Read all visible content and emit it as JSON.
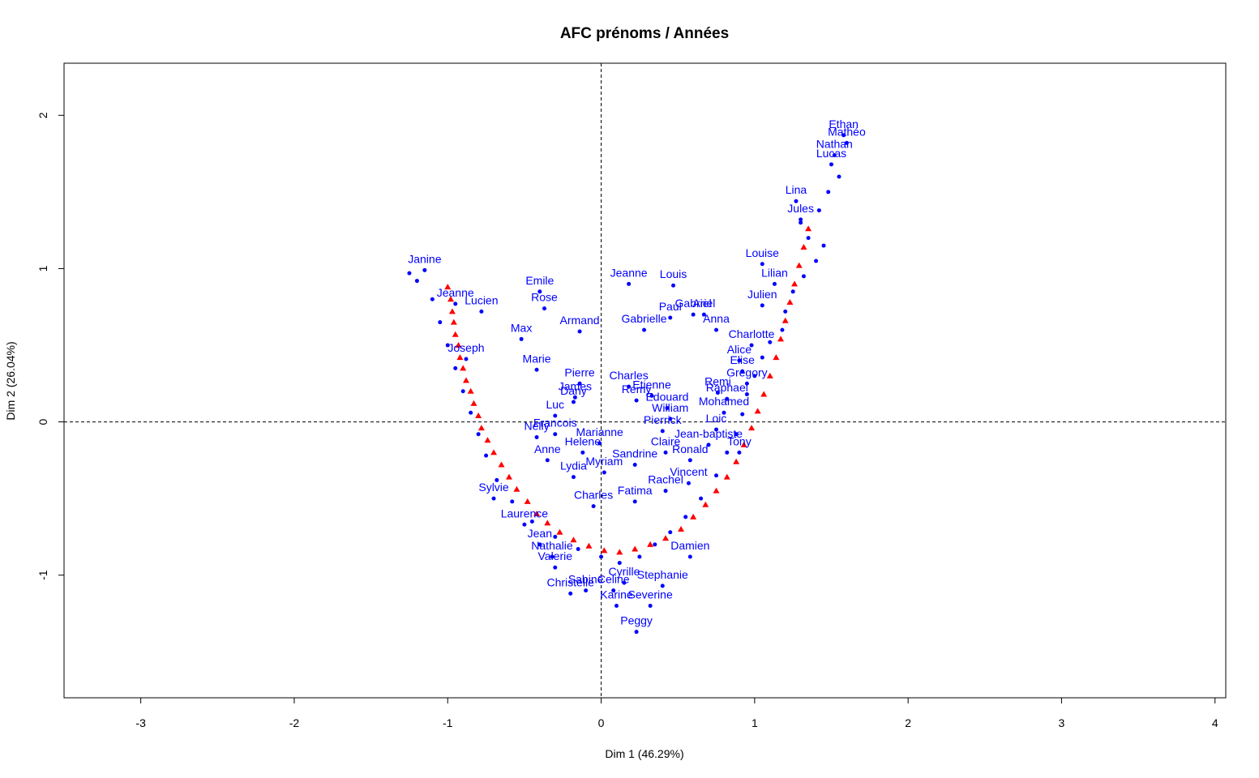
{
  "chart_data": {
    "type": "scatter",
    "title": "AFC prénoms / Années",
    "xlabel": "Dim 1 (46.29%)",
    "ylabel": "Dim 2 (26.04%)",
    "xlim": [
      -3.5,
      4.07
    ],
    "ylim": [
      -1.8,
      2.34
    ],
    "x_ticks": [
      -3,
      -2,
      -1,
      0,
      1,
      2,
      3,
      4
    ],
    "y_ticks": [
      -1,
      0,
      1,
      2
    ],
    "reference_lines": {
      "x": 0,
      "y": 0,
      "style": "dashed"
    },
    "grid": false,
    "colors": {
      "rows": "#0000ff",
      "columns": "#ff0000"
    },
    "series": [
      {
        "points": [
          {
            "label": "Ethan",
            "x": 1.58,
            "y": 1.87
          },
          {
            "label": "Mathéo",
            "x": 1.6,
            "y": 1.82
          },
          {
            "label": "Nathan",
            "x": 1.52,
            "y": 1.74
          },
          {
            "label": "Lucas",
            "x": 1.5,
            "y": 1.68
          },
          {
            "label": "Lina",
            "x": 1.27,
            "y": 1.44
          },
          {
            "label": "Jules",
            "x": 1.3,
            "y": 1.32
          },
          {
            "label": "Louise",
            "x": 1.05,
            "y": 1.03
          },
          {
            "label": "Lilian",
            "x": 1.13,
            "y": 0.9
          },
          {
            "label": "Julien",
            "x": 1.05,
            "y": 0.76
          },
          {
            "label": "Charlotte",
            "x": 0.98,
            "y": 0.5
          },
          {
            "label": "Alice",
            "x": 0.9,
            "y": 0.4
          },
          {
            "label": "Elise",
            "x": 0.92,
            "y": 0.33
          },
          {
            "label": "Gregory",
            "x": 0.95,
            "y": 0.25
          },
          {
            "label": "Remi",
            "x": 0.76,
            "y": 0.19
          },
          {
            "label": "Raphael",
            "x": 0.82,
            "y": 0.15
          },
          {
            "label": "Mohamed",
            "x": 0.8,
            "y": 0.06
          },
          {
            "label": "Loic",
            "x": 0.75,
            "y": -0.05
          },
          {
            "label": "Jean-baptiste",
            "x": 0.7,
            "y": -0.15
          },
          {
            "label": "Tony",
            "x": 0.9,
            "y": -0.2
          },
          {
            "label": "Ronald",
            "x": 0.58,
            "y": -0.25
          },
          {
            "label": "Vincent",
            "x": 0.57,
            "y": -0.4
          },
          {
            "label": "Rachel",
            "x": 0.42,
            "y": -0.45
          },
          {
            "label": "Jeanne",
            "x": 0.18,
            "y": 0.9
          },
          {
            "label": "Louis",
            "x": 0.47,
            "y": 0.89
          },
          {
            "label": "Ariel",
            "x": 0.67,
            "y": 0.7
          },
          {
            "label": "Paul",
            "x": 0.45,
            "y": 0.68
          },
          {
            "label": "Gabriel",
            "x": 0.6,
            "y": 0.7
          },
          {
            "label": "Anna",
            "x": 0.75,
            "y": 0.6
          },
          {
            "label": "Gabrielle",
            "x": 0.28,
            "y": 0.6
          },
          {
            "label": "Emile",
            "x": -0.4,
            "y": 0.85
          },
          {
            "label": "Rose",
            "x": -0.37,
            "y": 0.74
          },
          {
            "label": "Armand",
            "x": -0.14,
            "y": 0.59
          },
          {
            "label": "Max",
            "x": -0.52,
            "y": 0.54
          },
          {
            "label": "Marie",
            "x": -0.42,
            "y": 0.34
          },
          {
            "label": "Pierre",
            "x": -0.14,
            "y": 0.25
          },
          {
            "label": "Charles",
            "x": 0.18,
            "y": 0.23
          },
          {
            "label": "Etienne",
            "x": 0.33,
            "y": 0.17
          },
          {
            "label": "Remy",
            "x": 0.23,
            "y": 0.14
          },
          {
            "label": "Edouard",
            "x": 0.43,
            "y": 0.09
          },
          {
            "label": "James",
            "x": -0.17,
            "y": 0.16
          },
          {
            "label": "Dany",
            "x": -0.18,
            "y": 0.13
          },
          {
            "label": "William",
            "x": 0.45,
            "y": 0.02
          },
          {
            "label": "Luc",
            "x": -0.3,
            "y": 0.04
          },
          {
            "label": "Francois",
            "x": -0.3,
            "y": -0.08
          },
          {
            "label": "Pierrick",
            "x": 0.4,
            "y": -0.06
          },
          {
            "label": "Marianne",
            "x": -0.01,
            "y": -0.14
          },
          {
            "label": "Claire",
            "x": 0.42,
            "y": -0.2
          },
          {
            "label": "Helene",
            "x": -0.12,
            "y": -0.2
          },
          {
            "label": "Sandrine",
            "x": 0.22,
            "y": -0.28
          },
          {
            "label": "Myriam",
            "x": 0.02,
            "y": -0.33
          },
          {
            "label": "Anne",
            "x": -0.35,
            "y": -0.25
          },
          {
            "label": "Nelly",
            "x": -0.42,
            "y": -0.1
          },
          {
            "label": "Lydia",
            "x": -0.18,
            "y": -0.36
          },
          {
            "label": "Fatima",
            "x": 0.22,
            "y": -0.52
          },
          {
            "label": "Charles",
            "x": -0.05,
            "y": -0.55
          },
          {
            "label": "Janine",
            "x": -1.15,
            "y": 0.99
          },
          {
            "label": "Jeanne",
            "x": -0.95,
            "y": 0.77
          },
          {
            "label": "Lucien",
            "x": -0.78,
            "y": 0.72
          },
          {
            "label": "Joseph",
            "x": -0.88,
            "y": 0.41
          },
          {
            "label": "Sylvie",
            "x": -0.7,
            "y": -0.5
          },
          {
            "label": "Laurence",
            "x": -0.5,
            "y": -0.67
          },
          {
            "label": "Jean",
            "x": -0.4,
            "y": -0.8
          },
          {
            "label": "Nathalie",
            "x": -0.32,
            "y": -0.88
          },
          {
            "label": "Valerie",
            "x": -0.3,
            "y": -0.95
          },
          {
            "label": "Christelle",
            "x": -0.2,
            "y": -1.12
          },
          {
            "label": "Sabine",
            "x": -0.1,
            "y": -1.1
          },
          {
            "label": "Celine",
            "x": 0.08,
            "y": -1.1
          },
          {
            "label": "Karine",
            "x": 0.1,
            "y": -1.2
          },
          {
            "label": "Severine",
            "x": 0.32,
            "y": -1.2
          },
          {
            "label": "Cyrille",
            "x": 0.15,
            "y": -1.05
          },
          {
            "label": "Stephanie",
            "x": 0.4,
            "y": -1.07
          },
          {
            "label": "Peggy",
            "x": 0.23,
            "y": -1.37
          },
          {
            "label": "Damien",
            "x": 0.58,
            "y": -0.88
          }
        ],
        "unlabeled_points_approx": [
          [
            1.3,
            1.3
          ],
          [
            1.35,
            1.2
          ],
          [
            1.45,
            1.15
          ],
          [
            1.4,
            1.05
          ],
          [
            1.32,
            0.95
          ],
          [
            1.25,
            0.85
          ],
          [
            1.2,
            0.72
          ],
          [
            1.18,
            0.6
          ],
          [
            1.1,
            0.52
          ],
          [
            1.05,
            0.42
          ],
          [
            1.0,
            0.3
          ],
          [
            0.95,
            0.18
          ],
          [
            0.92,
            0.05
          ],
          [
            0.88,
            -0.08
          ],
          [
            0.82,
            -0.2
          ],
          [
            0.75,
            -0.35
          ],
          [
            0.65,
            -0.5
          ],
          [
            0.55,
            -0.62
          ],
          [
            0.45,
            -0.72
          ],
          [
            0.35,
            -0.8
          ],
          [
            0.25,
            -0.88
          ],
          [
            0.12,
            -0.92
          ],
          [
            0.0,
            -0.88
          ],
          [
            -0.15,
            -0.83
          ],
          [
            -0.3,
            -0.75
          ],
          [
            -0.45,
            -0.65
          ],
          [
            -0.58,
            -0.52
          ],
          [
            -0.68,
            -0.38
          ],
          [
            -0.75,
            -0.22
          ],
          [
            -0.8,
            -0.08
          ],
          [
            -0.85,
            0.06
          ],
          [
            -0.9,
            0.2
          ],
          [
            -0.95,
            0.35
          ],
          [
            -1.0,
            0.5
          ],
          [
            -1.05,
            0.65
          ],
          [
            -1.1,
            0.8
          ],
          [
            -1.2,
            0.92
          ],
          [
            -1.25,
            0.97
          ],
          [
            1.48,
            1.5
          ],
          [
            1.55,
            1.6
          ],
          [
            1.42,
            1.38
          ]
        ]
      },
      {
        "points": [
          [
            -1.0,
            0.88
          ],
          [
            -0.98,
            0.8
          ],
          [
            -0.97,
            0.72
          ],
          [
            -0.96,
            0.65
          ],
          [
            -0.95,
            0.57
          ],
          [
            -0.93,
            0.5
          ],
          [
            -0.92,
            0.42
          ],
          [
            -0.9,
            0.35
          ],
          [
            -0.88,
            0.27
          ],
          [
            -0.85,
            0.2
          ],
          [
            -0.83,
            0.12
          ],
          [
            -0.8,
            0.04
          ],
          [
            -0.78,
            -0.04
          ],
          [
            -0.74,
            -0.12
          ],
          [
            -0.7,
            -0.2
          ],
          [
            -0.65,
            -0.28
          ],
          [
            -0.6,
            -0.36
          ],
          [
            -0.55,
            -0.44
          ],
          [
            -0.48,
            -0.52
          ],
          [
            -0.42,
            -0.6
          ],
          [
            -0.35,
            -0.66
          ],
          [
            -0.27,
            -0.72
          ],
          [
            -0.18,
            -0.77
          ],
          [
            -0.08,
            -0.81
          ],
          [
            0.02,
            -0.84
          ],
          [
            0.12,
            -0.85
          ],
          [
            0.22,
            -0.83
          ],
          [
            0.32,
            -0.8
          ],
          [
            0.42,
            -0.76
          ],
          [
            0.52,
            -0.7
          ],
          [
            0.6,
            -0.62
          ],
          [
            0.68,
            -0.54
          ],
          [
            0.75,
            -0.45
          ],
          [
            0.82,
            -0.36
          ],
          [
            0.88,
            -0.26
          ],
          [
            0.93,
            -0.15
          ],
          [
            0.98,
            -0.04
          ],
          [
            1.02,
            0.07
          ],
          [
            1.06,
            0.18
          ],
          [
            1.1,
            0.3
          ],
          [
            1.14,
            0.42
          ],
          [
            1.17,
            0.54
          ],
          [
            1.2,
            0.66
          ],
          [
            1.23,
            0.78
          ],
          [
            1.26,
            0.9
          ],
          [
            1.29,
            1.02
          ],
          [
            1.32,
            1.14
          ],
          [
            1.35,
            1.26
          ]
        ]
      }
    ]
  }
}
